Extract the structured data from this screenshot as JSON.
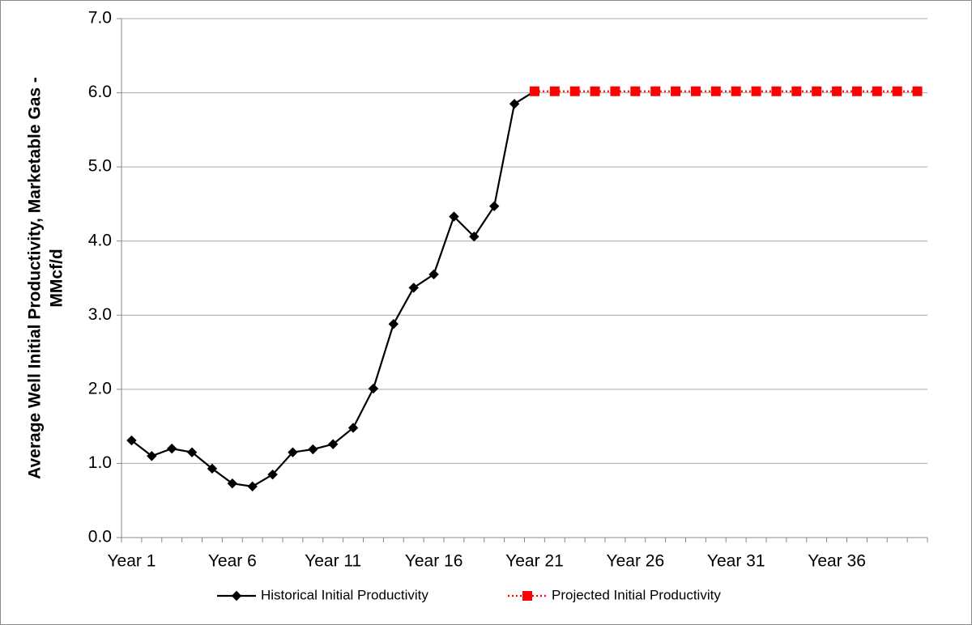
{
  "chart_data": {
    "type": "line",
    "y_label": [
      "Average Well Initial Productivity, Marketable Gas -",
      "MMcf/d"
    ],
    "categories": [
      "Year 1",
      null,
      null,
      null,
      null,
      "Year 6",
      null,
      null,
      null,
      null,
      "Year 11",
      null,
      null,
      null,
      null,
      "Year 16",
      null,
      null,
      null,
      null,
      "Year 21",
      null,
      null,
      null,
      null,
      "Year 26",
      null,
      null,
      null,
      null,
      "Year 31",
      null,
      null,
      null,
      null,
      "Year 36",
      null,
      null,
      null,
      null
    ],
    "series": [
      {
        "name": "Historical Initial Productivity",
        "color": "#000000",
        "marker": "diamond",
        "dash": "solid",
        "values": [
          1.31,
          1.1,
          1.2,
          1.15,
          0.93,
          0.73,
          0.69,
          0.85,
          1.15,
          1.19,
          1.26,
          1.48,
          2.01,
          2.88,
          3.37,
          3.55,
          4.33,
          4.06,
          4.47,
          5.85,
          6.02,
          null,
          null,
          null,
          null,
          null,
          null,
          null,
          null,
          null,
          null,
          null,
          null,
          null,
          null,
          null,
          null,
          null,
          null,
          null
        ]
      },
      {
        "name": "Projected Initial Productivity",
        "color": "#ff0000",
        "marker": "square",
        "dash": "dotted",
        "values": [
          null,
          null,
          null,
          null,
          null,
          null,
          null,
          null,
          null,
          null,
          null,
          null,
          null,
          null,
          null,
          null,
          null,
          null,
          null,
          null,
          6.02,
          6.02,
          6.02,
          6.02,
          6.02,
          6.02,
          6.02,
          6.02,
          6.02,
          6.02,
          6.02,
          6.02,
          6.02,
          6.02,
          6.02,
          6.02,
          6.02,
          6.02,
          6.02,
          6.02
        ]
      }
    ],
    "ylim": [
      0,
      7
    ],
    "yticks": [
      {
        "value": 0,
        "label": "0.0"
      },
      {
        "value": 1,
        "label": "1.0"
      },
      {
        "value": 2,
        "label": "2.0"
      },
      {
        "value": 3,
        "label": "3.0"
      },
      {
        "value": 4,
        "label": "4.0"
      },
      {
        "value": 5,
        "label": "5.0"
      },
      {
        "value": 6,
        "label": "6.0"
      },
      {
        "value": 7,
        "label": "7.0"
      }
    ],
    "grid": true,
    "legend": "bottom"
  }
}
